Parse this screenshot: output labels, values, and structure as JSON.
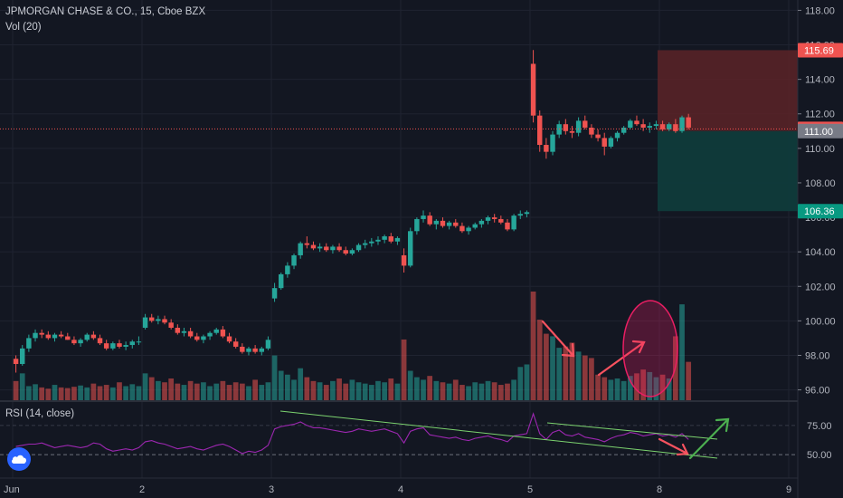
{
  "header": {
    "symbol_line": "JPMORGAN CHASE & CO., 15, Cboe BZX",
    "volume_line": "Vol (20)",
    "rsi_line": "RSI (14, close)"
  },
  "colors": {
    "background": "#131722",
    "up": "#26a69a",
    "down": "#ef5350",
    "rsi_line": "#9c27b0",
    "trendline": "#7cd36f",
    "arrow_red": "#f7525f",
    "arrow_green": "#4caf50",
    "stop_zone": "#5c2327",
    "target_zone": "#0f3b3b",
    "ellipse": "#e91e63"
  },
  "price_axis": {
    "ticks": [
      "118.00",
      "116.00",
      "114.00",
      "112.00",
      "110.00",
      "108.00",
      "106.00",
      "104.00",
      "102.00",
      "100.00",
      "98.00",
      "96.00"
    ],
    "labels": [
      {
        "value": 115.69,
        "text": "115.69",
        "color": "#ef5350"
      },
      {
        "value": 111.13,
        "text": "111.13",
        "color": "#ef5350"
      },
      {
        "value": 111.0,
        "text": "111.00",
        "color": "#787b86"
      },
      {
        "value": 106.36,
        "text": "106.36",
        "color": "#089981"
      }
    ]
  },
  "rsi_axis": {
    "ticks": [
      "75.00",
      "50.00"
    ]
  },
  "time_axis": {
    "labels": [
      "Jun",
      "2",
      "3",
      "4",
      "5",
      "8",
      "9"
    ]
  },
  "chart_data": {
    "type": "candlestick",
    "series": [
      {
        "name": "Price",
        "ohlc": [
          [
            97.8,
            98.0,
            97.0,
            97.5
          ],
          [
            97.5,
            98.6,
            97.4,
            98.4
          ],
          [
            98.4,
            99.2,
            98.2,
            99.0
          ],
          [
            99.0,
            99.5,
            98.8,
            99.3
          ],
          [
            99.3,
            99.5,
            99.0,
            99.2
          ],
          [
            99.2,
            99.4,
            98.9,
            99.0
          ],
          [
            99.0,
            99.3,
            98.8,
            99.2
          ],
          [
            99.2,
            99.4,
            99.0,
            99.1
          ],
          [
            99.1,
            99.3,
            98.9,
            98.9
          ],
          [
            98.9,
            99.1,
            98.6,
            98.7
          ],
          [
            98.7,
            99.0,
            98.5,
            98.9
          ],
          [
            98.9,
            99.3,
            98.8,
            99.2
          ],
          [
            99.2,
            99.4,
            98.9,
            99.0
          ],
          [
            99.0,
            99.2,
            98.6,
            98.7
          ],
          [
            98.7,
            98.9,
            98.3,
            98.4
          ],
          [
            98.4,
            98.8,
            98.3,
            98.7
          ],
          [
            98.7,
            98.9,
            98.4,
            98.5
          ],
          [
            98.5,
            98.8,
            98.3,
            98.6
          ],
          [
            98.6,
            98.9,
            98.4,
            98.8
          ],
          [
            98.8,
            99.1,
            98.6,
            98.8
          ],
          [
            99.6,
            100.4,
            99.5,
            100.2
          ],
          [
            100.2,
            100.4,
            99.9,
            100.0
          ],
          [
            100.0,
            100.3,
            99.8,
            100.1
          ],
          [
            100.1,
            100.3,
            99.8,
            99.9
          ],
          [
            99.9,
            100.1,
            99.5,
            99.6
          ],
          [
            99.6,
            99.8,
            99.2,
            99.3
          ],
          [
            99.3,
            99.6,
            99.1,
            99.4
          ],
          [
            99.4,
            99.6,
            99.0,
            99.1
          ],
          [
            99.1,
            99.3,
            98.8,
            98.9
          ],
          [
            98.9,
            99.2,
            98.7,
            99.1
          ],
          [
            99.1,
            99.4,
            98.9,
            99.3
          ],
          [
            99.3,
            99.6,
            99.2,
            99.5
          ],
          [
            99.5,
            99.7,
            99.0,
            99.1
          ],
          [
            99.1,
            99.3,
            98.7,
            98.8
          ],
          [
            98.8,
            99.0,
            98.4,
            98.5
          ],
          [
            98.5,
            98.7,
            98.1,
            98.2
          ],
          [
            98.2,
            98.5,
            98.0,
            98.4
          ],
          [
            98.4,
            98.6,
            98.1,
            98.2
          ],
          [
            98.2,
            98.5,
            98.0,
            98.4
          ],
          [
            98.4,
            99.1,
            98.3,
            98.9
          ],
          [
            101.3,
            102.2,
            101.1,
            101.9
          ],
          [
            101.9,
            102.8,
            101.8,
            102.7
          ],
          [
            102.7,
            103.4,
            102.5,
            103.2
          ],
          [
            103.2,
            103.9,
            103.0,
            103.8
          ],
          [
            103.8,
            104.6,
            103.6,
            104.5
          ],
          [
            104.5,
            104.9,
            104.2,
            104.4
          ],
          [
            104.4,
            104.6,
            104.1,
            104.2
          ],
          [
            104.2,
            104.5,
            104.0,
            104.3
          ],
          [
            104.3,
            104.5,
            104.0,
            104.1
          ],
          [
            104.1,
            104.4,
            103.9,
            104.3
          ],
          [
            104.3,
            104.5,
            104.0,
            104.1
          ],
          [
            104.1,
            104.3,
            103.8,
            103.9
          ],
          [
            103.9,
            104.2,
            103.8,
            104.1
          ],
          [
            104.1,
            104.5,
            104.0,
            104.4
          ],
          [
            104.4,
            104.7,
            104.2,
            104.5
          ],
          [
            104.5,
            104.8,
            104.3,
            104.6
          ],
          [
            104.6,
            104.9,
            104.4,
            104.7
          ],
          [
            104.7,
            105.0,
            104.5,
            104.9
          ],
          [
            104.9,
            105.1,
            104.5,
            104.6
          ],
          [
            104.6,
            104.9,
            104.4,
            104.8
          ],
          [
            103.8,
            104.2,
            102.8,
            103.2
          ],
          [
            103.2,
            105.4,
            103.1,
            105.2
          ],
          [
            105.2,
            106.0,
            105.0,
            105.9
          ],
          [
            105.9,
            106.4,
            105.7,
            106.1
          ],
          [
            106.1,
            106.3,
            105.5,
            105.6
          ],
          [
            105.6,
            105.9,
            105.3,
            105.8
          ],
          [
            105.8,
            106.0,
            105.4,
            105.5
          ],
          [
            105.5,
            105.8,
            105.3,
            105.7
          ],
          [
            105.7,
            105.9,
            105.4,
            105.5
          ],
          [
            105.5,
            105.7,
            105.1,
            105.2
          ],
          [
            105.2,
            105.5,
            105.0,
            105.4
          ],
          [
            105.4,
            105.7,
            105.3,
            105.6
          ],
          [
            105.6,
            105.9,
            105.4,
            105.8
          ],
          [
            105.8,
            106.1,
            105.6,
            106.0
          ],
          [
            106.0,
            106.2,
            105.7,
            105.9
          ],
          [
            105.9,
            106.1,
            105.6,
            105.7
          ],
          [
            105.7,
            105.9,
            105.2,
            105.3
          ],
          [
            105.3,
            106.2,
            105.2,
            106.1
          ],
          [
            106.1,
            106.4,
            105.9,
            106.2
          ],
          [
            106.2,
            106.4,
            106.0,
            106.3
          ],
          [
            114.9,
            115.7,
            111.5,
            111.9
          ],
          [
            111.9,
            112.2,
            109.8,
            110.2
          ],
          [
            110.2,
            110.6,
            109.4,
            109.8
          ],
          [
            109.8,
            111.0,
            109.6,
            110.8
          ],
          [
            110.8,
            111.6,
            110.6,
            111.4
          ],
          [
            111.4,
            111.7,
            110.8,
            111.0
          ],
          [
            111.0,
            111.3,
            110.6,
            110.9
          ],
          [
            110.9,
            111.8,
            110.7,
            111.6
          ],
          [
            111.6,
            111.9,
            111.1,
            111.2
          ],
          [
            111.2,
            111.4,
            110.6,
            110.8
          ],
          [
            110.8,
            111.1,
            110.4,
            110.6
          ],
          [
            110.6,
            110.9,
            109.6,
            110.1
          ],
          [
            110.1,
            110.7,
            110.0,
            110.6
          ],
          [
            110.6,
            111.0,
            110.4,
            110.9
          ],
          [
            110.9,
            111.3,
            110.8,
            111.2
          ],
          [
            111.2,
            111.7,
            111.1,
            111.6
          ],
          [
            111.6,
            111.9,
            111.3,
            111.4
          ],
          [
            111.4,
            111.7,
            111.0,
            111.2
          ],
          [
            111.2,
            111.5,
            110.9,
            111.3
          ],
          [
            111.3,
            111.6,
            111.1,
            111.4
          ],
          [
            111.4,
            111.6,
            111.0,
            111.1
          ],
          [
            111.1,
            111.5,
            111.0,
            111.4
          ],
          [
            111.4,
            111.7,
            110.9,
            111.0
          ],
          [
            111.0,
            111.9,
            110.9,
            111.8
          ],
          [
            111.8,
            112.0,
            111.1,
            111.2
          ]
        ]
      },
      {
        "name": "Volume",
        "values": [
          30,
          42,
          22,
          25,
          20,
          18,
          24,
          20,
          19,
          21,
          23,
          20,
          26,
          22,
          24,
          20,
          28,
          22,
          25,
          22,
          42,
          36,
          30,
          28,
          34,
          26,
          24,
          30,
          26,
          28,
          22,
          26,
          30,
          24,
          28,
          26,
          22,
          32,
          24,
          28,
          70,
          46,
          40,
          32,
          50,
          36,
          30,
          28,
          24,
          30,
          34,
          26,
          32,
          28,
          26,
          24,
          30,
          28,
          34,
          26,
          95,
          46,
          36,
          32,
          38,
          30,
          28,
          26,
          32,
          24,
          22,
          28,
          26,
          30,
          28,
          24,
          26,
          32,
          52,
          56,
          170,
          126,
          104,
          100,
          82,
          84,
          90,
          76,
          70,
          66,
          40,
          36,
          32,
          34,
          30,
          38,
          42,
          48,
          44,
          36,
          40,
          34,
          100,
          150,
          60
        ]
      },
      {
        "name": "RSI",
        "values": [
          57,
          58,
          59,
          59,
          60,
          58,
          56,
          57,
          58,
          57,
          56,
          57,
          60,
          59,
          55,
          53,
          54,
          55,
          54,
          56,
          61,
          62,
          60,
          59,
          57,
          55,
          56,
          57,
          55,
          54,
          56,
          58,
          59,
          57,
          54,
          51,
          53,
          52,
          54,
          58,
          72,
          74,
          75,
          76,
          78,
          75,
          73,
          73,
          72,
          71,
          70,
          69,
          70,
          72,
          71,
          70,
          71,
          72,
          70,
          68,
          60,
          70,
          72,
          73,
          67,
          66,
          65,
          64,
          65,
          63,
          62,
          64,
          65,
          66,
          64,
          63,
          61,
          66,
          67,
          68,
          85,
          68,
          63,
          69,
          71,
          67,
          66,
          68,
          65,
          64,
          63,
          61,
          64,
          66,
          67,
          69,
          68,
          66,
          67,
          68,
          66,
          67,
          65,
          68,
          63
        ]
      }
    ],
    "sessions": [
      "Jun",
      "2",
      "3",
      "4",
      "5",
      "8"
    ],
    "ylim": [
      95.4,
      118.6
    ],
    "rsi_ylim": [
      30,
      95
    ],
    "rsi_levels": [
      75,
      50
    ],
    "last_price": 111.13,
    "position": {
      "stop": 115.69,
      "entry": 111.0,
      "target": 106.36
    },
    "grid": true
  }
}
